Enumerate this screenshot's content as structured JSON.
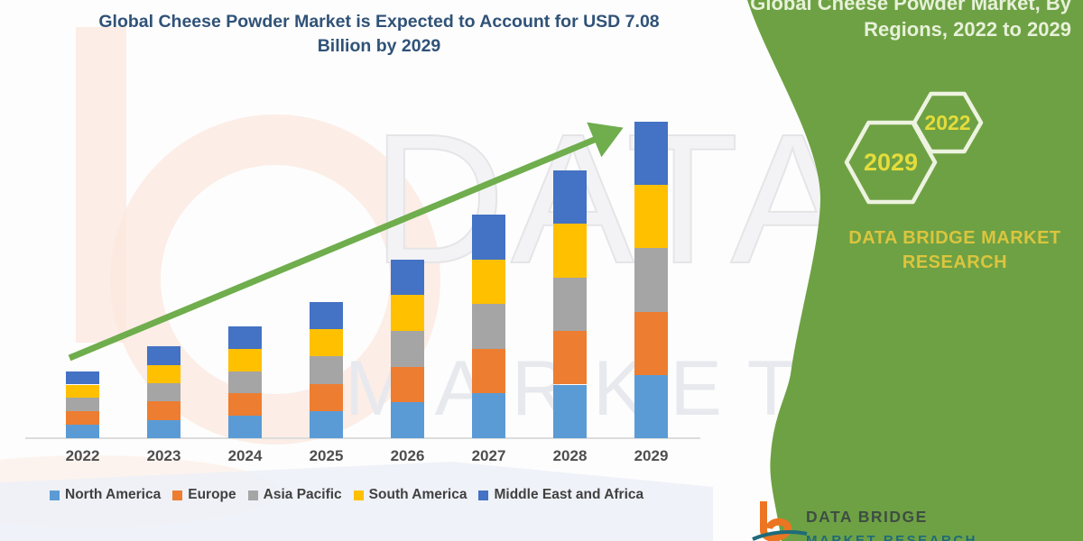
{
  "chart": {
    "title_line1": "Global Cheese Powder Market is Expected to Account for USD 7.08",
    "title_line2": "Billion by 2029"
  },
  "chart_data": {
    "type": "bar",
    "stacked": true,
    "title": "Global Cheese Powder Market is Expected to Account for USD 7.08 Billion by 2029",
    "unit": "USD Billion",
    "categories": [
      "2022",
      "2023",
      "2024",
      "2025",
      "2026",
      "2027",
      "2028",
      "2029"
    ],
    "series": [
      {
        "name": "North America",
        "color": "#5b9bd5",
        "values": [
          0.3,
          0.41,
          0.5,
          0.61,
          0.8,
          1.0,
          1.2,
          1.416
        ]
      },
      {
        "name": "Europe",
        "color": "#ed7d31",
        "values": [
          0.3,
          0.41,
          0.5,
          0.61,
          0.8,
          1.0,
          1.2,
          1.416
        ]
      },
      {
        "name": "Asia Pacific",
        "color": "#a5a5a5",
        "values": [
          0.3,
          0.41,
          0.5,
          0.61,
          0.8,
          1.0,
          1.2,
          1.416
        ]
      },
      {
        "name": "South America",
        "color": "#ffc000",
        "values": [
          0.3,
          0.41,
          0.5,
          0.61,
          0.8,
          1.0,
          1.2,
          1.416
        ]
      },
      {
        "name": "Middle East and Africa",
        "color": "#4472c4",
        "values": [
          0.3,
          0.41,
          0.5,
          0.61,
          0.8,
          1.0,
          1.2,
          1.416
        ]
      }
    ],
    "totals": [
      1.5,
      2.05,
      2.5,
      3.05,
      4.0,
      5.0,
      6.0,
      7.08
    ],
    "ylim": [
      0,
      7.5
    ],
    "gridlines": false,
    "legend_position": "bottom",
    "trend_arrow": true
  },
  "sidebar": {
    "panel_color": "#6ea144",
    "heading_line1": "Global Cheese Powder Market, By",
    "heading_line2": "Regions, 2022 to 2029",
    "hexagons": [
      {
        "year": "2022"
      },
      {
        "year": "2029"
      }
    ],
    "brand_line1": "DATA BRIDGE MARKET",
    "brand_line2": "RESEARCH"
  },
  "watermark": {
    "big_text": "DATA BRI",
    "small_text": "MARKET RE"
  },
  "footer_logo": {
    "name": "DATA BRIDGE",
    "sub": "MARKET RESEARCH"
  }
}
